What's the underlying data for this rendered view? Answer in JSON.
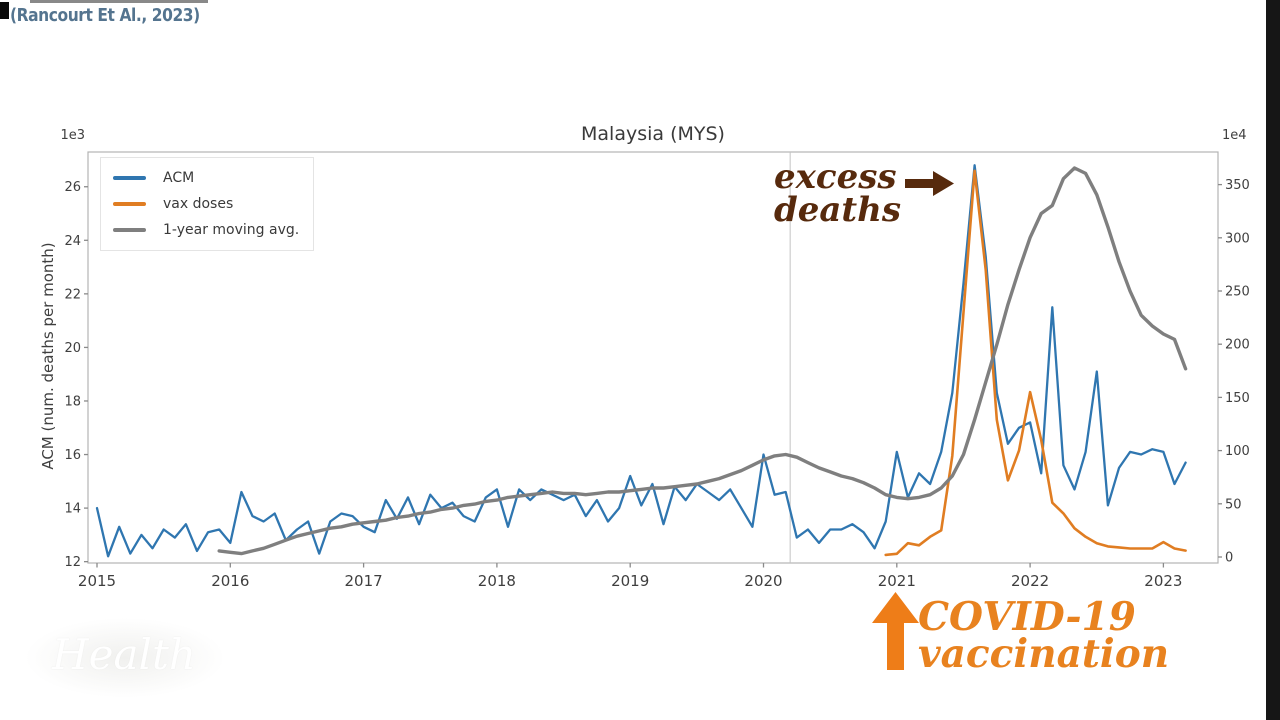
{
  "citation": "(Rancourt Et Al., 2023)",
  "watermark": "Health",
  "annotations": {
    "excess_line1": "excess",
    "excess_line2": "deaths",
    "excess_arrow": "right-arrow",
    "vax_line1": "COVID-19",
    "vax_line2": "vaccination",
    "vax_arrow": "up-arrow",
    "excess_color": "#572a0d",
    "vax_color": "#e8821f"
  },
  "chart_data": {
    "type": "line",
    "title": "Malaysia (MYS)",
    "ylabel_left": "ACM (num. deaths per month)",
    "left_axis_multiplier": "1e3",
    "right_axis_multiplier": "1e4",
    "x_ticks": [
      2015,
      2016,
      2017,
      2018,
      2019,
      2020,
      2021,
      2022,
      2023
    ],
    "left_ticks": [
      12,
      14,
      16,
      18,
      20,
      22,
      24,
      26
    ],
    "right_ticks": [
      0,
      50,
      100,
      150,
      200,
      250,
      300,
      350
    ],
    "ylim_left": [
      11.95,
      27.3
    ],
    "ylim_right": [
      -5.6,
      380.6
    ],
    "xlim": [
      2014.93,
      2023.41
    ],
    "vline_x": 2020.2,
    "grid": false,
    "legend_position": "upper-left",
    "series": [
      {
        "name": "ACM",
        "axis": "left",
        "color": "#2f76b0",
        "width": 2.3,
        "start": 2015.0,
        "step_months": 1,
        "values": [
          14.0,
          12.2,
          13.3,
          12.3,
          13.0,
          12.5,
          13.2,
          12.9,
          13.4,
          12.4,
          13.1,
          13.2,
          12.7,
          14.6,
          13.7,
          13.5,
          13.8,
          12.8,
          13.2,
          13.5,
          12.3,
          13.5,
          13.8,
          13.7,
          13.3,
          13.1,
          14.3,
          13.6,
          14.4,
          13.4,
          14.5,
          14.0,
          14.2,
          13.7,
          13.5,
          14.4,
          14.7,
          13.3,
          14.7,
          14.3,
          14.7,
          14.5,
          14.3,
          14.5,
          13.7,
          14.3,
          13.5,
          14.0,
          15.2,
          14.1,
          14.9,
          13.4,
          14.8,
          14.3,
          14.9,
          14.6,
          14.3,
          14.7,
          14.0,
          13.3,
          16.0,
          14.5,
          14.6,
          12.9,
          13.2,
          12.7,
          13.2,
          13.2,
          13.4,
          13.1,
          12.5,
          13.5,
          16.1,
          14.4,
          15.3,
          14.9,
          16.1,
          18.3,
          22.4,
          26.8,
          23.4,
          18.3,
          16.4,
          17.0,
          17.2,
          15.3,
          21.5,
          15.6,
          14.7,
          16.1,
          19.1,
          14.1,
          15.5,
          16.1,
          16.0,
          16.2,
          16.1,
          14.9,
          15.7
        ]
      },
      {
        "name": "vax doses",
        "axis": "right",
        "color": "#e07d22",
        "width": 2.6,
        "start": 2020.9167,
        "step_months": 1,
        "values": [
          2,
          3,
          13,
          11,
          19,
          25,
          95,
          230,
          363,
          270,
          129,
          72,
          100,
          155,
          110,
          51,
          41,
          27,
          19,
          13,
          10,
          9,
          8,
          8,
          8,
          14,
          8,
          6
        ]
      },
      {
        "name": "1-year moving avg.",
        "axis": "left",
        "color": "#7f7f7f",
        "width": 3.4,
        "start": 2015.9167,
        "step_months": 1,
        "values": [
          12.4,
          12.35,
          12.3,
          12.4,
          12.5,
          12.65,
          12.8,
          12.95,
          13.05,
          13.15,
          13.25,
          13.3,
          13.4,
          13.45,
          13.5,
          13.55,
          13.65,
          13.7,
          13.8,
          13.85,
          13.95,
          14.0,
          14.1,
          14.15,
          14.25,
          14.3,
          14.4,
          14.45,
          14.5,
          14.55,
          14.6,
          14.55,
          14.55,
          14.5,
          14.55,
          14.6,
          14.6,
          14.65,
          14.7,
          14.75,
          14.75,
          14.8,
          14.85,
          14.9,
          15.0,
          15.1,
          15.25,
          15.4,
          15.6,
          15.8,
          15.95,
          16.0,
          15.9,
          15.7,
          15.5,
          15.35,
          15.2,
          15.1,
          14.95,
          14.75,
          14.5,
          14.4,
          14.35,
          14.4,
          14.5,
          14.75,
          15.2,
          16.0,
          17.3,
          18.7,
          20.1,
          21.6,
          22.9,
          24.1,
          25.0,
          25.3,
          26.3,
          26.7,
          26.5,
          25.7,
          24.5,
          23.2,
          22.1,
          21.2,
          20.8,
          20.5,
          20.3,
          19.2
        ]
      }
    ]
  }
}
